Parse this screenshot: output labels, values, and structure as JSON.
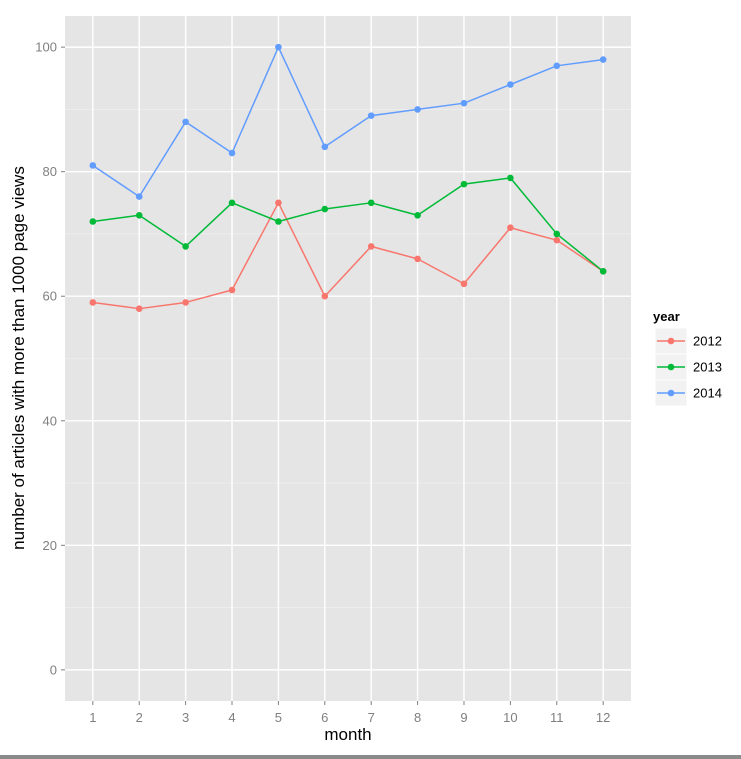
{
  "chart_data": {
    "type": "line",
    "title": "",
    "xlabel": "month",
    "ylabel": "number of articles with more than 1000 page views",
    "x": [
      1,
      2,
      3,
      4,
      5,
      6,
      7,
      8,
      9,
      10,
      11,
      12
    ],
    "x_ticks": [
      "1",
      "2",
      "3",
      "4",
      "5",
      "6",
      "7",
      "8",
      "9",
      "10",
      "11",
      "12"
    ],
    "y_ticks": [
      "0",
      "20",
      "40",
      "60",
      "80",
      "100"
    ],
    "xlim": [
      0.4,
      12.6
    ],
    "ylim": [
      -5,
      105
    ],
    "grid": true,
    "legend": {
      "title": "year",
      "position": "right"
    },
    "series": [
      {
        "name": "2012",
        "color": "#f8766d",
        "values": [
          59,
          58,
          59,
          61,
          75,
          60,
          68,
          66,
          62,
          71,
          69,
          64
        ]
      },
      {
        "name": "2013",
        "color": "#00ba38",
        "values": [
          72,
          73,
          68,
          75,
          72,
          74,
          75,
          73,
          78,
          79,
          70,
          64
        ]
      },
      {
        "name": "2014",
        "color": "#619cff",
        "values": [
          81,
          76,
          88,
          83,
          100,
          84,
          89,
          90,
          91,
          94,
          97,
          98
        ]
      }
    ]
  }
}
